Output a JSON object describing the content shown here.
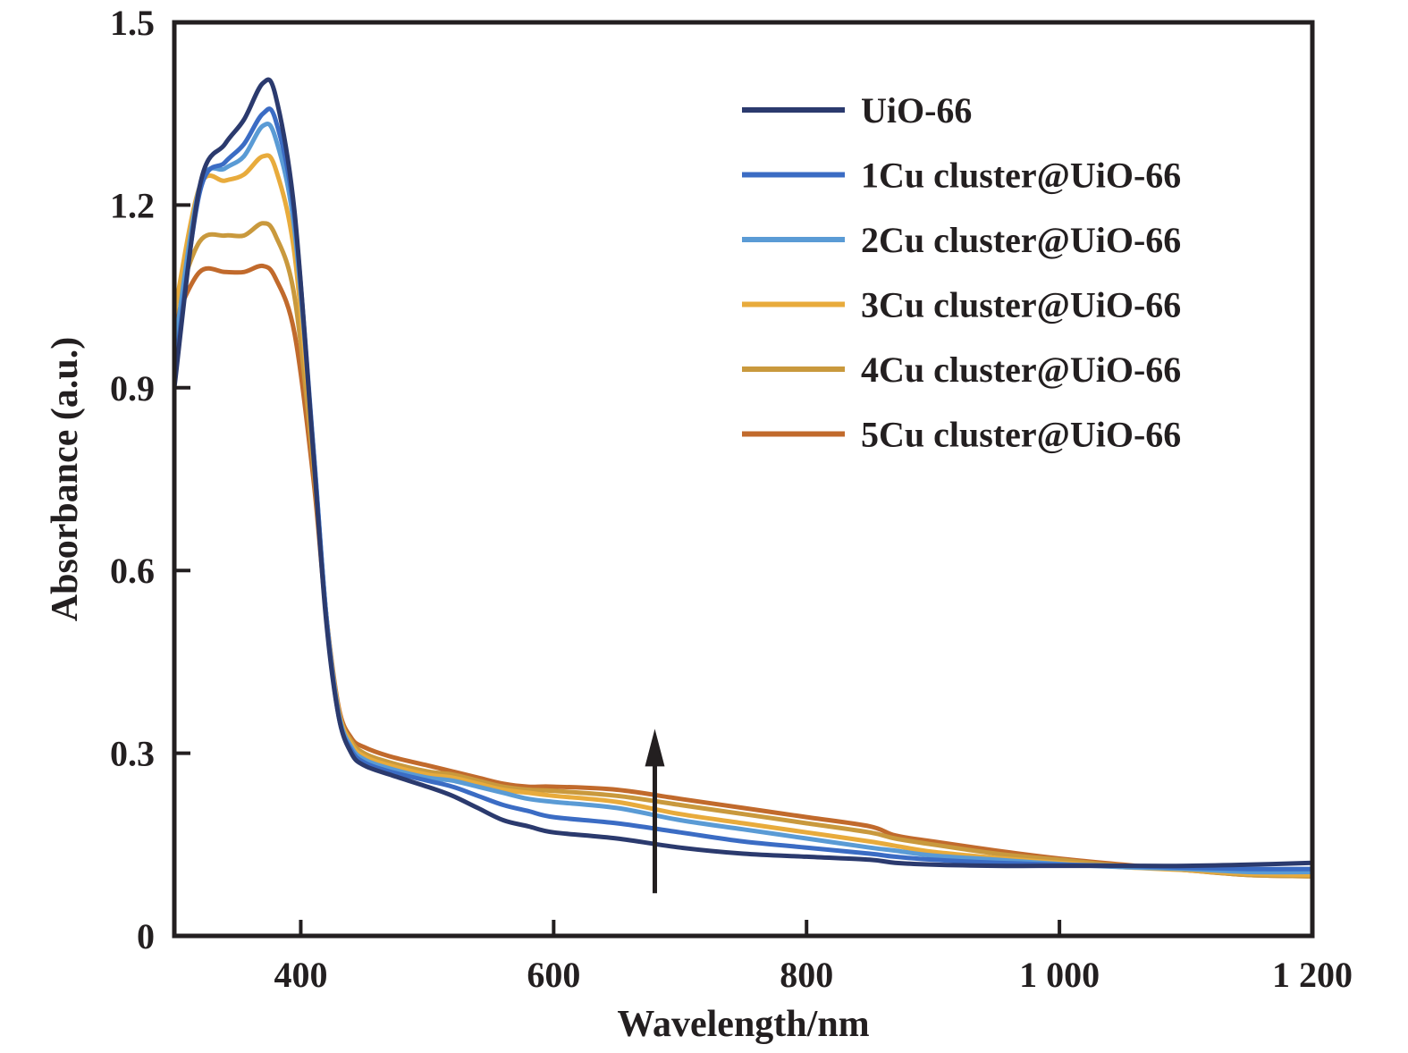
{
  "chart_data": {
    "type": "line",
    "xlabel": "Wavelength/nm",
    "ylabel": "Absorbance (a.u.)",
    "xlim": [
      300,
      1200
    ],
    "ylim": [
      0,
      1.5
    ],
    "x_ticks": [
      400,
      600,
      800,
      1000,
      1200
    ],
    "x_tick_labels": [
      "400",
      "600",
      "800",
      "1 000",
      "1 200"
    ],
    "y_ticks": [
      0,
      0.3,
      0.6,
      0.9,
      1.2,
      1.5
    ],
    "y_tick_labels": [
      "0",
      "0.3",
      "0.6",
      "0.9",
      "1.2",
      "1.5"
    ],
    "grid": false,
    "legend_position": "top-right",
    "annotation": {
      "type": "arrow",
      "direction": "up",
      "x": 680,
      "y_from": 0.07,
      "y_to": 0.34
    },
    "series": [
      {
        "name": "UiO-66",
        "color": "#2b3a6e",
        "x": [
          300,
          320,
          340,
          355,
          370,
          380,
          395,
          410,
          420,
          430,
          440,
          450,
          470,
          500,
          520,
          540,
          560,
          580,
          600,
          650,
          700,
          750,
          800,
          850,
          870,
          900,
          950,
          1000,
          1050,
          1100,
          1150,
          1200
        ],
        "y": [
          0.9,
          1.23,
          1.3,
          1.34,
          1.4,
          1.38,
          1.19,
          0.79,
          0.52,
          0.36,
          0.3,
          0.28,
          0.265,
          0.245,
          0.23,
          0.21,
          0.19,
          0.18,
          0.17,
          0.16,
          0.145,
          0.135,
          0.13,
          0.125,
          0.12,
          0.117,
          0.115,
          0.115,
          0.115,
          0.115,
          0.117,
          0.12
        ]
      },
      {
        "name": "1Cu cluster@UiO-66",
        "color": "#3b6cc4",
        "x": [
          300,
          320,
          340,
          355,
          370,
          380,
          395,
          410,
          420,
          430,
          440,
          450,
          470,
          500,
          520,
          540,
          560,
          580,
          600,
          650,
          700,
          750,
          800,
          850,
          870,
          900,
          950,
          1000,
          1050,
          1100,
          1150,
          1200
        ],
        "y": [
          0.92,
          1.22,
          1.27,
          1.3,
          1.35,
          1.34,
          1.18,
          0.8,
          0.53,
          0.36,
          0.305,
          0.285,
          0.27,
          0.255,
          0.245,
          0.23,
          0.215,
          0.205,
          0.195,
          0.185,
          0.17,
          0.155,
          0.145,
          0.135,
          0.13,
          0.125,
          0.12,
          0.117,
          0.115,
          0.112,
          0.11,
          0.11
        ]
      },
      {
        "name": "2Cu cluster@UiO-66",
        "color": "#5a9bd5",
        "x": [
          300,
          320,
          340,
          355,
          370,
          380,
          395,
          410,
          420,
          430,
          440,
          450,
          470,
          500,
          520,
          540,
          560,
          580,
          600,
          650,
          700,
          750,
          800,
          850,
          870,
          900,
          950,
          1000,
          1050,
          1100,
          1150,
          1200
        ],
        "y": [
          0.96,
          1.23,
          1.26,
          1.28,
          1.33,
          1.31,
          1.16,
          0.8,
          0.53,
          0.365,
          0.31,
          0.29,
          0.275,
          0.26,
          0.255,
          0.245,
          0.235,
          0.225,
          0.22,
          0.21,
          0.19,
          0.175,
          0.16,
          0.145,
          0.14,
          0.132,
          0.125,
          0.118,
          0.113,
          0.11,
          0.105,
          0.105
        ]
      },
      {
        "name": "3Cu cluster@UiO-66",
        "color": "#e8ab3c",
        "x": [
          300,
          320,
          340,
          355,
          370,
          380,
          395,
          410,
          420,
          430,
          440,
          450,
          470,
          500,
          520,
          540,
          560,
          580,
          600,
          650,
          700,
          750,
          800,
          850,
          870,
          900,
          950,
          1000,
          1050,
          1100,
          1150,
          1200
        ],
        "y": [
          1.02,
          1.23,
          1.24,
          1.25,
          1.28,
          1.26,
          1.12,
          0.79,
          0.53,
          0.37,
          0.315,
          0.295,
          0.28,
          0.265,
          0.26,
          0.25,
          0.24,
          0.235,
          0.23,
          0.22,
          0.2,
          0.185,
          0.17,
          0.155,
          0.148,
          0.138,
          0.128,
          0.12,
          0.113,
          0.108,
          0.102,
          0.1
        ]
      },
      {
        "name": "4Cu cluster@UiO-66",
        "color": "#c9993d",
        "x": [
          300,
          320,
          340,
          355,
          370,
          380,
          395,
          410,
          420,
          430,
          440,
          450,
          470,
          500,
          520,
          540,
          560,
          580,
          600,
          650,
          700,
          750,
          800,
          850,
          870,
          900,
          950,
          1000,
          1050,
          1100,
          1150,
          1200
        ],
        "y": [
          1.03,
          1.14,
          1.15,
          1.15,
          1.17,
          1.15,
          1.05,
          0.77,
          0.53,
          0.37,
          0.32,
          0.3,
          0.285,
          0.27,
          0.265,
          0.255,
          0.245,
          0.24,
          0.238,
          0.23,
          0.215,
          0.2,
          0.185,
          0.17,
          0.16,
          0.15,
          0.135,
          0.125,
          0.115,
          0.108,
          0.1,
          0.098
        ]
      },
      {
        "name": "5Cu cluster@UiO-66",
        "color": "#c16a2c",
        "x": [
          300,
          320,
          340,
          355,
          370,
          380,
          395,
          410,
          420,
          430,
          440,
          450,
          470,
          500,
          520,
          540,
          560,
          580,
          600,
          650,
          700,
          750,
          800,
          850,
          870,
          900,
          950,
          1000,
          1050,
          1100,
          1150,
          1200
        ],
        "y": [
          1.01,
          1.09,
          1.09,
          1.09,
          1.1,
          1.08,
          0.99,
          0.75,
          0.53,
          0.375,
          0.325,
          0.31,
          0.295,
          0.28,
          0.27,
          0.26,
          0.25,
          0.245,
          0.245,
          0.24,
          0.225,
          0.21,
          0.195,
          0.18,
          0.165,
          0.155,
          0.14,
          0.127,
          0.117,
          0.108,
          0.1,
          0.098
        ]
      }
    ]
  }
}
